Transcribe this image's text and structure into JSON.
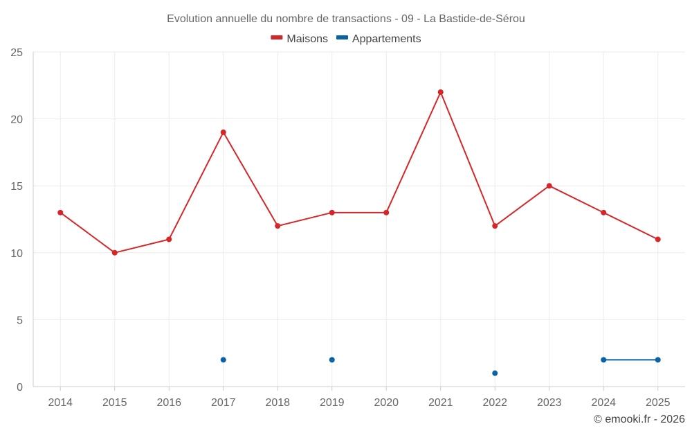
{
  "chart_data": {
    "type": "line",
    "title": "Evolution annuelle du nombre de transactions - 09 - La Bastide-de-Sérou",
    "categories": [
      "2014",
      "2015",
      "2016",
      "2017",
      "2018",
      "2019",
      "2020",
      "2021",
      "2022",
      "2023",
      "2024",
      "2025"
    ],
    "series": [
      {
        "name": "Maisons",
        "color": "#d62728",
        "values": [
          13,
          10,
          11,
          19,
          12,
          13,
          13,
          22,
          12,
          15,
          13,
          11
        ]
      },
      {
        "name": "Appartements",
        "color": "#0b62a4",
        "values": [
          null,
          null,
          null,
          2,
          null,
          2,
          null,
          null,
          1,
          null,
          2,
          2
        ]
      }
    ],
    "ylim": [
      0,
      25
    ],
    "yticks": [
      0,
      5,
      10,
      15,
      20,
      25
    ],
    "xlabel": "",
    "ylabel": "",
    "legend_position": "top-center",
    "grid": true
  },
  "credit": "© emooki.fr - 2026"
}
